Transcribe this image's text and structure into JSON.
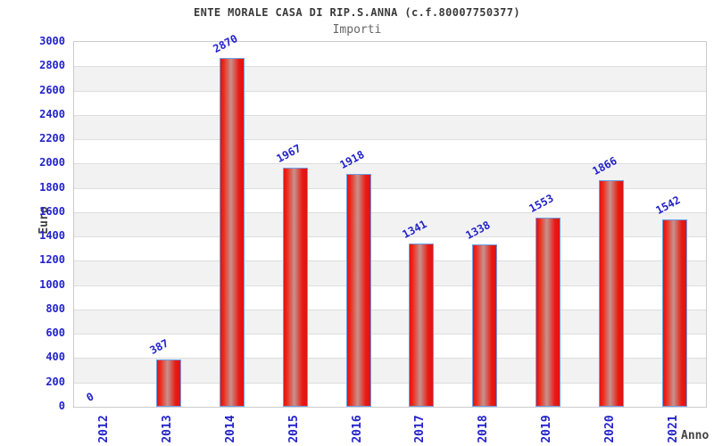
{
  "header": {
    "title": "ENTE MORALE CASA DI RIP.S.ANNA (c.f.80007750377)",
    "subtitle": "Importi"
  },
  "chart_data": {
    "type": "bar",
    "title": "ENTE MORALE CASA DI RIP.S.ANNA (c.f.80007750377)",
    "subtitle": "Importi",
    "categories": [
      "2012",
      "2013",
      "2014",
      "2015",
      "2016",
      "2017",
      "2018",
      "2019",
      "2020",
      "2021"
    ],
    "values": [
      0,
      387,
      2870,
      1967,
      1918,
      1341,
      1338,
      1553,
      1866,
      1542
    ],
    "xlabel": "Anno",
    "ylabel": "Euro",
    "ylim": [
      0,
      3000
    ],
    "ytick_step": 200,
    "grid": "alternating-horizontal-bands",
    "legend": "none",
    "value_labels_rotation_deg": -28,
    "xtick_rotation_deg": -90,
    "colors": {
      "bar_fill_edge": "#e21212",
      "bar_fill_highlight": "#c6928e",
      "bar_border": "#6b9fe4",
      "value_label": "#2222cc",
      "tick_label": "#2222cc",
      "axis_title": "#444444",
      "chart_title": "#3a3a3a",
      "subtitle": "#666666",
      "band_alt": "#f2f2f2",
      "band_main": "#ffffff",
      "grid_line": "#dddddd",
      "plot_border": "#cccccc",
      "background": "#ffffff"
    }
  }
}
